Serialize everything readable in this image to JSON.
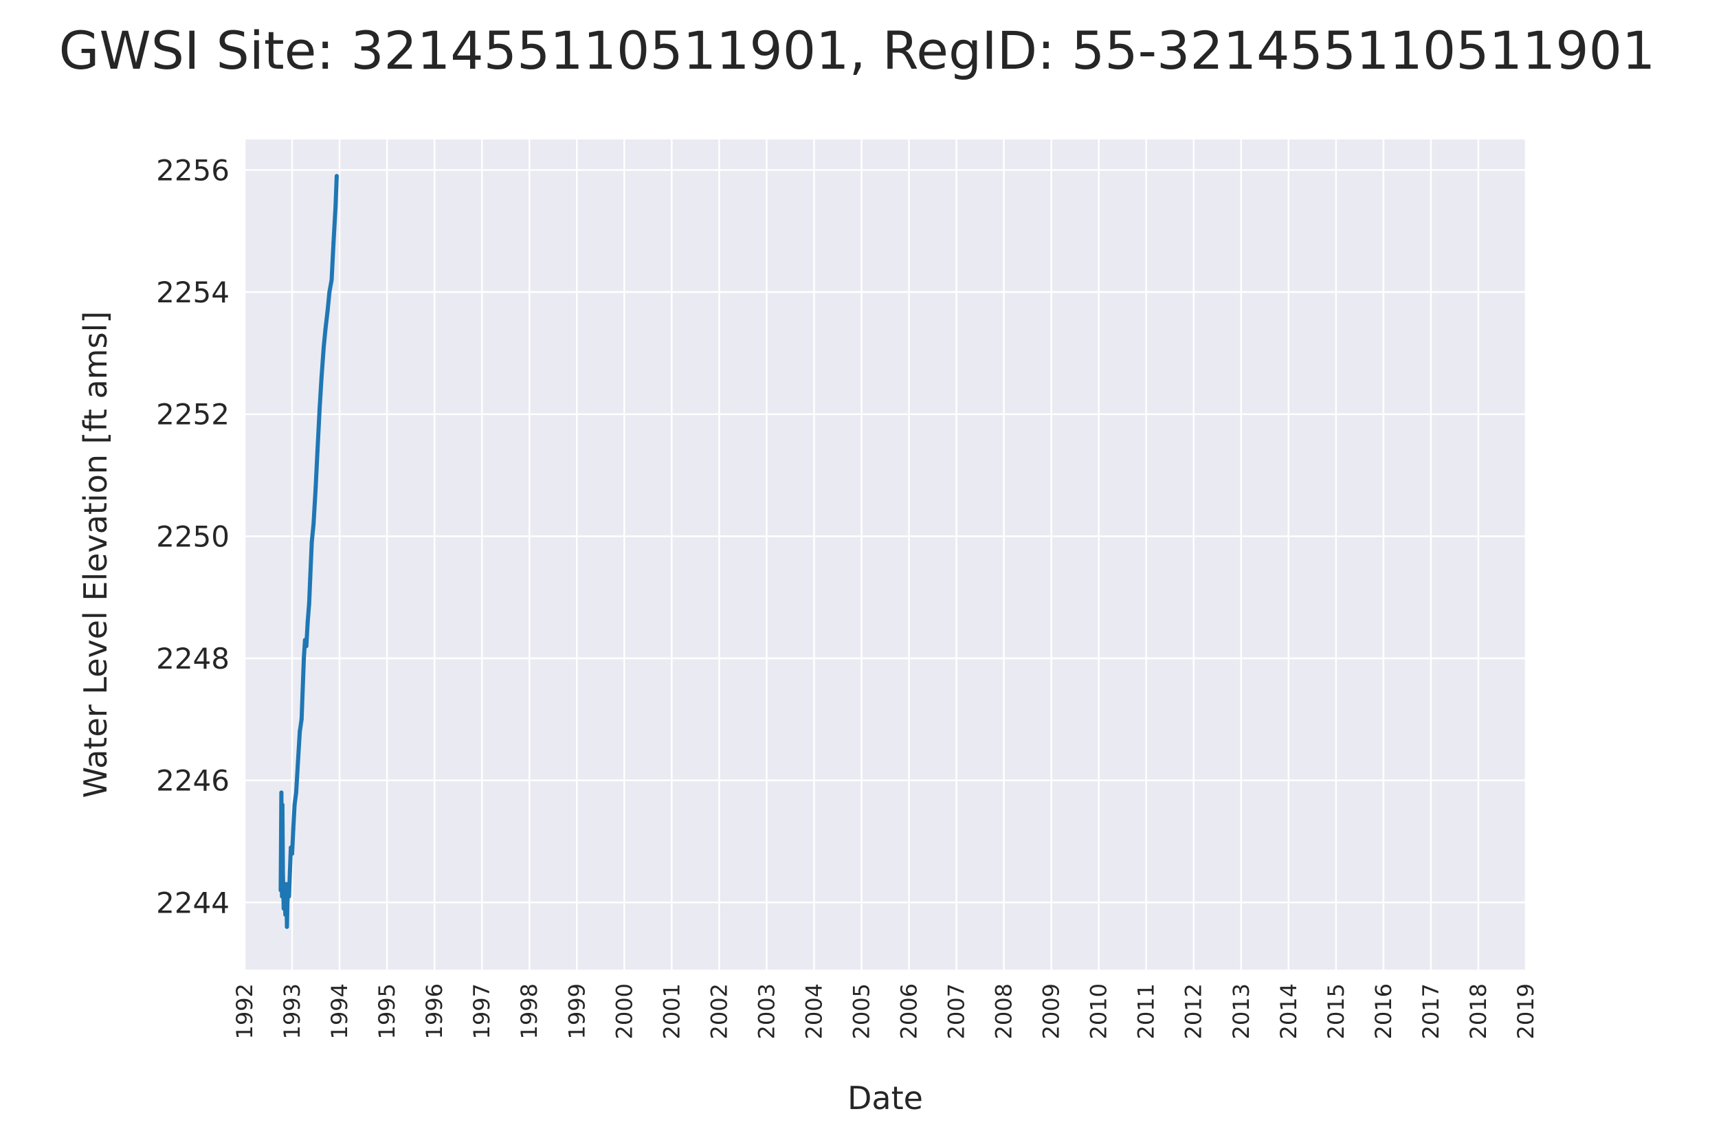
{
  "chart_data": {
    "type": "line",
    "title": "GWSI Site: 321455110511901, RegID: 55-321455110511901",
    "xlabel": "Date",
    "ylabel": "Water Level Elevation [ft amsl]",
    "x_ticks": [
      "1992",
      "1993",
      "1994",
      "1995",
      "1996",
      "1997",
      "1998",
      "1999",
      "2000",
      "2001",
      "2002",
      "2003",
      "2004",
      "2005",
      "2006",
      "2007",
      "2008",
      "2009",
      "2010",
      "2011",
      "2012",
      "2013",
      "2014",
      "2015",
      "2016",
      "2017",
      "2018",
      "2019"
    ],
    "y_ticks": [
      2244,
      2246,
      2248,
      2250,
      2252,
      2254,
      2256
    ],
    "ylim": [
      2242.9,
      2256.5
    ],
    "grid": true,
    "colors": {
      "background": "#eaeaf2",
      "grid": "#ffffff",
      "line": "#1f77b4"
    },
    "series": [
      {
        "x": [
          "1992-10-05",
          "1992-10-10",
          "1992-10-15",
          "1992-10-18",
          "1992-10-22",
          "1992-10-28",
          "1992-11-03",
          "1992-11-10",
          "1992-11-16",
          "1992-11-22",
          "1992-11-26",
          "1992-12-02",
          "1992-12-08",
          "1992-12-15",
          "1992-12-22",
          "1993-01-01",
          "1993-01-10",
          "1993-01-20",
          "1993-02-01",
          "1993-02-15",
          "1993-03-01",
          "1993-03-15",
          "1993-04-01",
          "1993-04-10",
          "1993-04-20",
          "1993-05-01",
          "1993-05-12",
          "1993-05-20",
          "1993-06-01",
          "1993-06-15",
          "1993-07-01",
          "1993-07-15",
          "1993-08-01",
          "1993-08-15",
          "1993-09-01",
          "1993-09-15",
          "1993-10-01",
          "1993-10-15",
          "1993-11-01",
          "1993-11-15",
          "1993-12-01",
          "1993-12-10"
        ],
        "y": [
          2244.2,
          2245.8,
          2244.1,
          2245.6,
          2244.5,
          2243.9,
          2244.2,
          2243.8,
          2244.3,
          2243.6,
          2244.0,
          2244.3,
          2244.1,
          2244.5,
          2244.9,
          2244.8,
          2245.2,
          2245.6,
          2245.8,
          2246.3,
          2246.8,
          2247.0,
          2248.0,
          2248.3,
          2248.2,
          2248.6,
          2248.9,
          2249.3,
          2249.9,
          2250.2,
          2250.8,
          2251.4,
          2252.1,
          2252.6,
          2253.1,
          2253.4,
          2253.7,
          2254.0,
          2254.2,
          2254.8,
          2255.4,
          2255.9
        ]
      }
    ]
  }
}
